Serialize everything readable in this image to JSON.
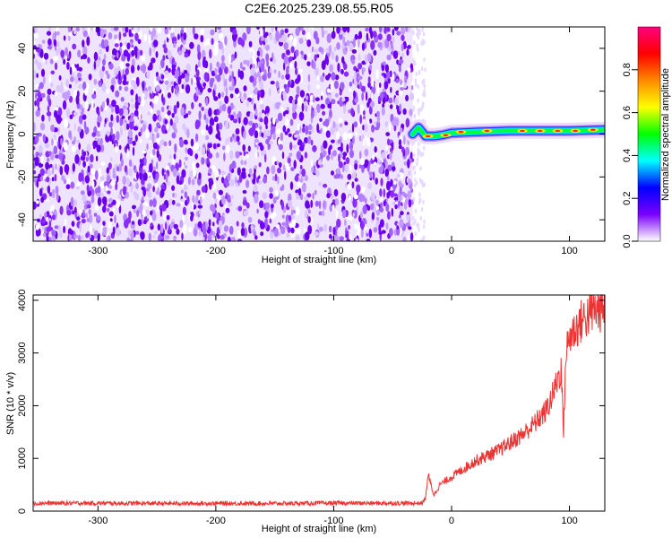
{
  "title": "C2E6.2025.239.08.55.R05",
  "chart_data": [
    {
      "type": "heatmap",
      "title": "C2E6.2025.239.08.55.R05",
      "xlabel": "Height of straight line (km)",
      "ylabel": "Frequency (Hz)",
      "xlim": [
        -355,
        130
      ],
      "ylim": [
        -50,
        50
      ],
      "xticks": [
        -300,
        -200,
        -100,
        0,
        100
      ],
      "yticks": [
        -40,
        -20,
        0,
        20,
        40
      ],
      "noise_region_x": [
        -355,
        -33
      ],
      "signal_track": [
        {
          "x": -33,
          "y": 0
        },
        {
          "x": -28,
          "y": 3
        },
        {
          "x": -22,
          "y": -1
        },
        {
          "x": -15,
          "y": -1
        },
        {
          "x": -8,
          "y": -0.5
        },
        {
          "x": 0,
          "y": 0.5
        },
        {
          "x": 20,
          "y": 1
        },
        {
          "x": 50,
          "y": 1.5
        },
        {
          "x": 80,
          "y": 1.5
        },
        {
          "x": 100,
          "y": 1.5
        },
        {
          "x": 130,
          "y": 2
        }
      ],
      "colorbar": {
        "label": "Normalized spectral amplitude",
        "range": [
          0.0,
          1.0
        ],
        "ticks": [
          "0.0",
          "0.2",
          "0.4",
          "0.6",
          "0.8"
        ],
        "colors": [
          "#ffffff",
          "#7a00ff",
          "#0000ff",
          "#00ffff",
          "#00ff00",
          "#ffff00",
          "#ff8800",
          "#ff0000",
          "#ff0080"
        ]
      }
    },
    {
      "type": "line",
      "xlabel": "Height of straight line (km)",
      "ylabel": "SNR (10 * v/v)",
      "xlim": [
        -355,
        130
      ],
      "ylim": [
        0,
        4100
      ],
      "xticks": [
        -300,
        -200,
        -100,
        0,
        100
      ],
      "yticks": [
        0,
        1000,
        2000,
        3000,
        4000
      ],
      "color": "#ee3333",
      "series": [
        {
          "x": [
            -355,
            -300,
            -250,
            -200,
            -150,
            -100,
            -50,
            -25,
            -22,
            -20,
            -15,
            -10,
            0,
            10,
            20,
            30,
            40,
            50,
            60,
            70,
            80,
            85,
            90,
            93,
            95,
            97,
            100,
            110,
            120,
            130
          ],
          "values": [
            150,
            150,
            145,
            145,
            145,
            150,
            150,
            150,
            250,
            700,
            300,
            500,
            650,
            800,
            950,
            1050,
            1150,
            1300,
            1450,
            1650,
            1900,
            2150,
            2500,
            2700,
            1500,
            3000,
            3300,
            3600,
            3800,
            3850
          ]
        }
      ]
    }
  ]
}
